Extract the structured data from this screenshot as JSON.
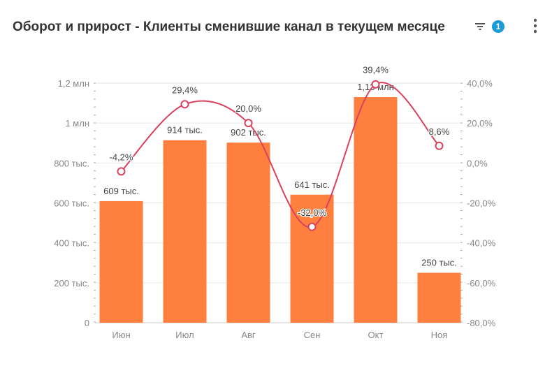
{
  "header": {
    "title": "Оборот и прирост - Клиенты сменившие канал в текущем месяце",
    "filter_icon": "filter-icon",
    "filter_count": "1",
    "menu_icon": "more-vertical-icon"
  },
  "colors": {
    "bar": "#ff7f3f",
    "line": "#d9415e",
    "badge": "#1a9bd7"
  },
  "chart_data": {
    "type": "bar",
    "categories": [
      "Июн",
      "Июл",
      "Авг",
      "Сен",
      "Окт",
      "Ноя"
    ],
    "series": [
      {
        "type": "bar",
        "axis": "left",
        "values": [
          609000,
          914000,
          902000,
          641000,
          1130000,
          250000
        ],
        "labels": [
          "609 тыс.",
          "914 тыс.",
          "902 тыс.",
          "641 тыс.",
          "1,13 млн",
          "250 тыс."
        ]
      },
      {
        "type": "line",
        "axis": "right",
        "smooth": true,
        "values": [
          -4.2,
          29.4,
          20.0,
          -32.0,
          39.4,
          8.6
        ],
        "labels": [
          "-4,2%",
          "29,4%",
          "20,0%",
          "-32,0%",
          "39,4%",
          "8,6%"
        ]
      }
    ],
    "left_axis": {
      "ylim": [
        0,
        1200000
      ],
      "ticks": [
        "0",
        "200 тыс.",
        "400 тыс.",
        "600 тыс.",
        "800 тыс.",
        "1 млн",
        "1,2 млн"
      ]
    },
    "right_axis": {
      "ylim": [
        -80,
        40
      ],
      "ticks": [
        "-80,0%",
        "-60,0%",
        "-40,0%",
        "-20,0%",
        "0,0%",
        "20,0%",
        "40,0%"
      ]
    },
    "grid": true,
    "legend": "none"
  }
}
